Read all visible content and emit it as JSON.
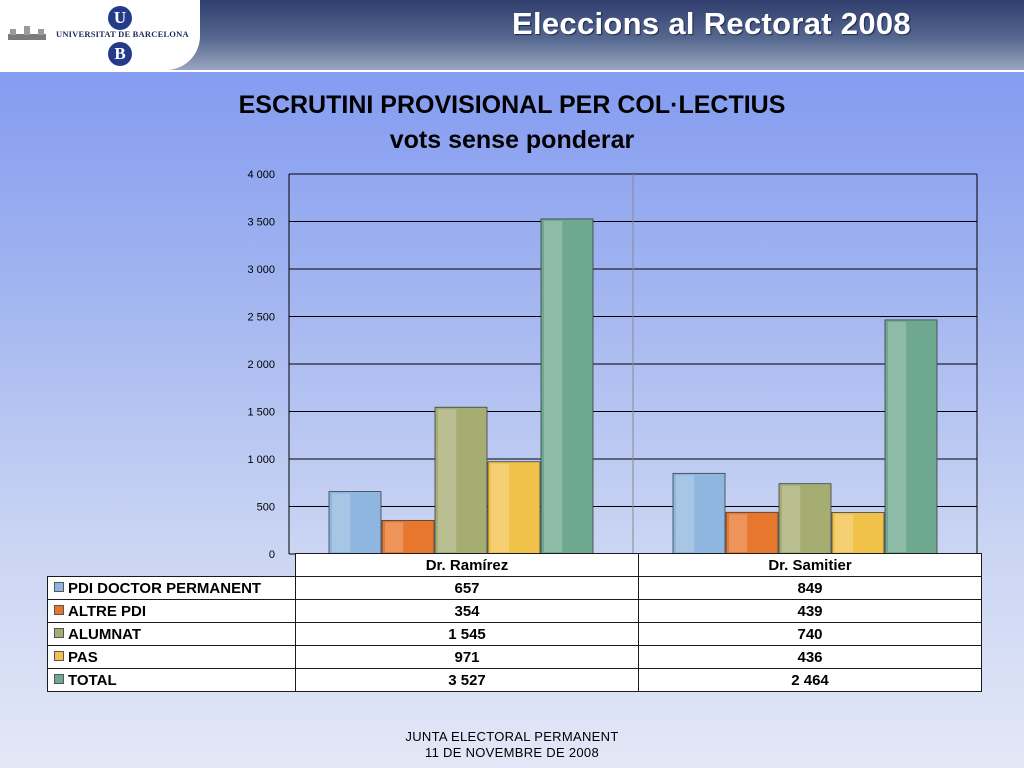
{
  "header": {
    "title": "Eleccions al Rectorat 2008",
    "logo_text": "UNIVERSITAT DE BARCELONA",
    "logo_letter_top": "U",
    "logo_letter_bottom": "B"
  },
  "chart_data": {
    "type": "bar",
    "title": "ESCRUTINI PROVISIONAL PER COL·LECTIUS",
    "subtitle": "vots sense ponderar",
    "categories": [
      "Dr. Ramírez",
      "Dr. Samitier"
    ],
    "series": [
      {
        "name": "PDI DOCTOR PERMANENT",
        "values": [
          657,
          849
        ],
        "value_labels": [
          "657",
          "849"
        ],
        "color": "#8fb6df"
      },
      {
        "name": "ALTRE PDI",
        "values": [
          354,
          439
        ],
        "value_labels": [
          "354",
          "439"
        ],
        "color": "#e8772e"
      },
      {
        "name": "ALUMNAT",
        "values": [
          1545,
          740
        ],
        "value_labels": [
          "1 545",
          "740"
        ],
        "color": "#a6ad72"
      },
      {
        "name": "PAS",
        "values": [
          971,
          436
        ],
        "value_labels": [
          "971",
          "436"
        ],
        "color": "#f0c24a"
      },
      {
        "name": "TOTAL",
        "values": [
          3527,
          2464
        ],
        "value_labels": [
          "3 527",
          "2 464"
        ],
        "color": "#6fa890"
      }
    ],
    "ylim": [
      0,
      4000
    ],
    "yticks": [
      0,
      500,
      1000,
      1500,
      2000,
      2500,
      3000,
      3500,
      4000
    ],
    "ytick_labels": [
      "0",
      "500",
      "1 000",
      "1 500",
      "2 000",
      "2 500",
      "3 000",
      "3 500",
      "4 000"
    ],
    "grid": true,
    "legend": "data-table"
  },
  "footer": {
    "line1": "JUNTA ELECTORAL PERMANENT",
    "line2": "11 DE NOVEMBRE DE 2008"
  }
}
